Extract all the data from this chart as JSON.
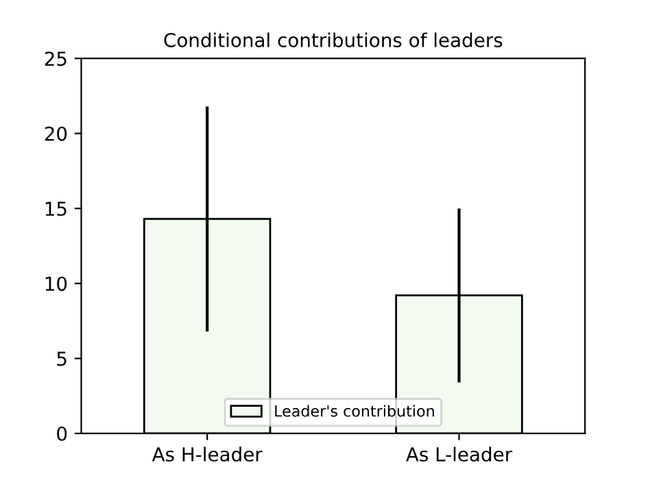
{
  "chart_data": {
    "type": "bar",
    "title": "Conditional contributions of leaders",
    "categories": [
      "As H-leader",
      "As L-leader"
    ],
    "series": [
      {
        "name": "Leader's contribution",
        "color": "#f3faf0",
        "values": [
          14.3,
          9.2
        ],
        "errors": [
          7.5,
          5.8
        ]
      }
    ],
    "ylim": [
      0,
      25
    ],
    "yticks": [
      0,
      5,
      10,
      15,
      20,
      25
    ],
    "grid": false,
    "legend": "bottom"
  }
}
